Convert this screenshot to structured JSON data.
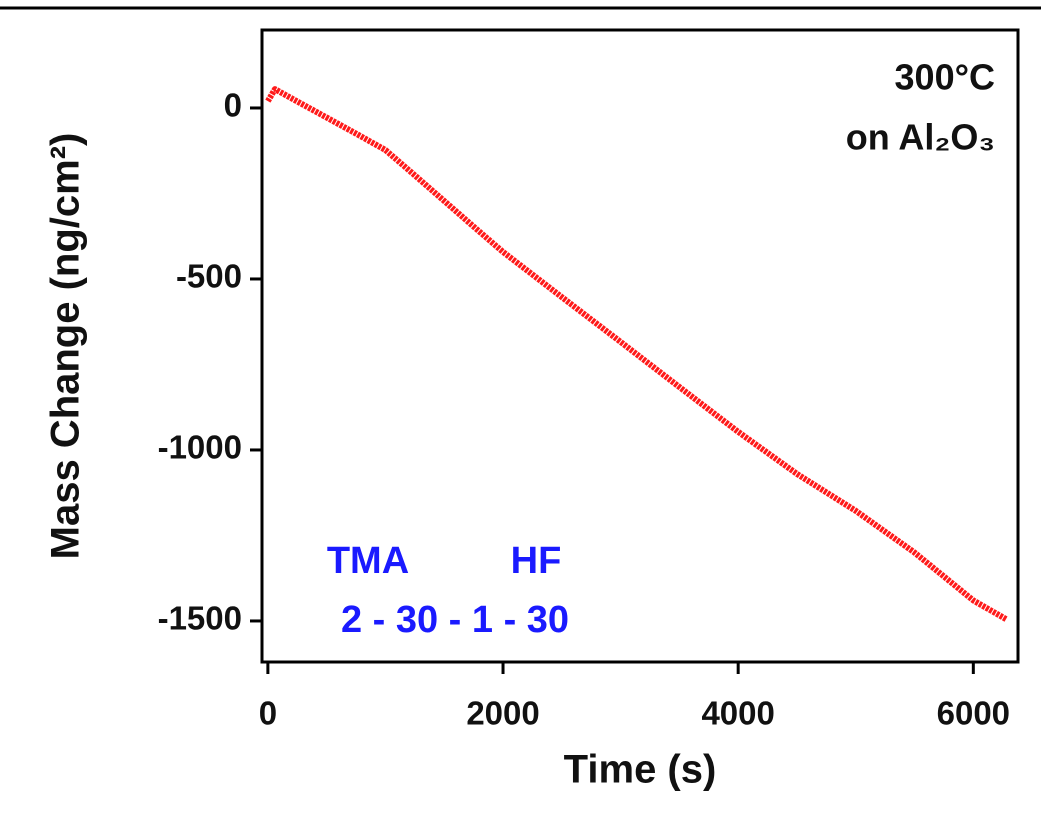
{
  "chart_data": {
    "type": "line",
    "x_label": "Time (s)",
    "y_label": "Mass Change (ng/cm²)",
    "annotations": [
      "300°C",
      "on Al₂O₃",
      "TMA",
      "HF",
      "2 - 30 - 1 - 30"
    ],
    "x": [
      0,
      60,
      250,
      500,
      750,
      1000,
      1250,
      1500,
      1750,
      2000,
      2500,
      3000,
      3500,
      4000,
      4500,
      5000,
      5500,
      6000,
      6280
    ],
    "series": [
      {
        "name": "Mass Change",
        "color": "#ff1a1a",
        "values": [
          20,
          55,
          19,
          -28,
          -75,
          -123,
          -197,
          -272,
          -347,
          -421,
          -553,
          -684,
          -816,
          -947,
          -1070,
          -1178,
          -1300,
          -1440,
          -1495
        ]
      }
    ],
    "xlim": [
      -50,
      6380
    ],
    "xticks": [
      0,
      2000,
      4000,
      6000
    ],
    "ylim": [
      -1620,
      228
    ],
    "yticks": [
      0,
      -500,
      -1000,
      -1500
    ]
  }
}
